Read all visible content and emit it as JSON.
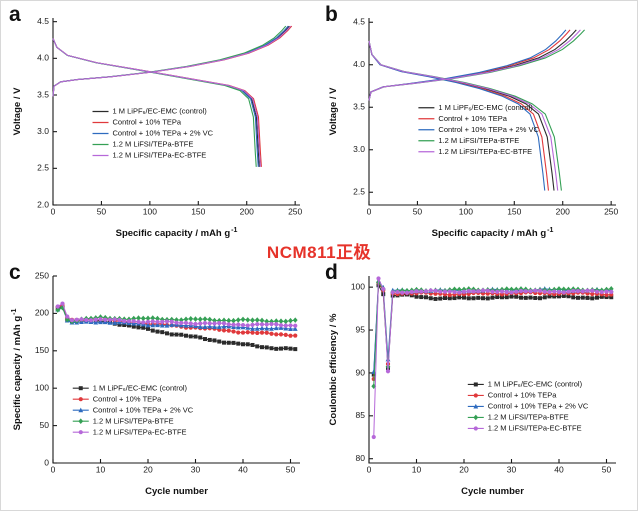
{
  "figure": {
    "center_label": "NCM811正极",
    "center_label_color": "#e6332a",
    "background": "#ffffff"
  },
  "chart_data": [
    {
      "panel": "a",
      "type": "line",
      "xlabel": "Specific capacity / mAh g",
      "xlabel_sup": "-1",
      "ylabel": "Voltage / V",
      "ylabel_sup": "",
      "xlim": [
        0,
        255
      ],
      "xticks": [
        0,
        50,
        100,
        150,
        200,
        250
      ],
      "xtick_labels": [
        "0",
        "50",
        "100",
        "150",
        "200",
        "250"
      ],
      "ylim": [
        2.0,
        4.55
      ],
      "yticks": [
        2.0,
        2.5,
        3.0,
        3.5,
        4.0,
        4.5
      ],
      "ytick_labels": [
        "2.0",
        "2.5",
        "3.0",
        "3.5",
        "4.0",
        "4.5"
      ],
      "markers": false,
      "jitter": 0,
      "legend": {
        "x": 0.16,
        "y": 0.5
      },
      "paths_template": {
        "charge": [
          [
            0,
            3.48
          ],
          [
            1,
            3.62
          ],
          [
            8,
            3.68
          ],
          [
            25,
            3.71
          ],
          [
            60,
            3.75
          ],
          [
            100,
            3.81
          ],
          [
            140,
            3.89
          ],
          [
            175,
            3.98
          ],
          [
            200,
            4.07
          ],
          [
            220,
            4.18
          ],
          [
            232,
            4.28
          ],
          [
            240,
            4.38
          ],
          [
            244,
            4.44
          ]
        ],
        "discharge": [
          [
            0,
            4.27
          ],
          [
            4,
            4.15
          ],
          [
            15,
            4.04
          ],
          [
            45,
            3.94
          ],
          [
            85,
            3.85
          ],
          [
            120,
            3.77
          ],
          [
            150,
            3.7
          ],
          [
            180,
            3.63
          ],
          [
            196,
            3.56
          ],
          [
            205,
            3.45
          ],
          [
            210,
            3.2
          ],
          [
            212,
            2.72
          ],
          [
            213,
            2.52
          ]
        ]
      },
      "series": [
        {
          "name": "1 M LiPF₆/EC-EMC (control)",
          "color": "#2b2b2b",
          "xscale": 1.0,
          "marker": "square"
        },
        {
          "name": "Control + 10% TEPa",
          "color": "#e0393c",
          "xscale": 1.01,
          "marker": "circle"
        },
        {
          "name": "Control + 10% TEPa + 2% VC",
          "color": "#2e6bbf",
          "xscale": 0.995,
          "marker": "triangle"
        },
        {
          "name": "1.2 M LiFSI/TEPa-BTFE",
          "color": "#35a055",
          "xscale": 0.985,
          "marker": "diamond"
        },
        {
          "name": "1.2 M LiFSI/TEPa-EC-BTFE",
          "color": "#b668d9",
          "xscale": 1.005,
          "marker": "circle"
        }
      ]
    },
    {
      "panel": "b",
      "type": "line",
      "xlabel": "Specific capacity / mAh g",
      "xlabel_sup": "-1",
      "ylabel": "Voltage / V",
      "ylabel_sup": "",
      "xlim": [
        0,
        255
      ],
      "xticks": [
        0,
        50,
        100,
        150,
        200,
        250
      ],
      "xtick_labels": [
        "0",
        "50",
        "100",
        "150",
        "200",
        "250"
      ],
      "ylim": [
        2.35,
        4.55
      ],
      "yticks": [
        2.5,
        3.0,
        3.5,
        4.0,
        4.5
      ],
      "ytick_labels": [
        "2.5",
        "3.0",
        "3.5",
        "4.0",
        "4.5"
      ],
      "markers": false,
      "jitter": 0,
      "legend": {
        "x": 0.2,
        "y": 0.48
      },
      "paths_template": {
        "charge": [
          [
            0,
            3.58
          ],
          [
            2,
            3.68
          ],
          [
            15,
            3.74
          ],
          [
            45,
            3.78
          ],
          [
            85,
            3.84
          ],
          [
            120,
            3.91
          ],
          [
            150,
            3.99
          ],
          [
            175,
            4.08
          ],
          [
            192,
            4.18
          ],
          [
            203,
            4.28
          ],
          [
            210,
            4.36
          ],
          [
            214,
            4.41
          ]
        ],
        "discharge": [
          [
            0,
            4.28
          ],
          [
            3,
            4.12
          ],
          [
            12,
            4.0
          ],
          [
            35,
            3.92
          ],
          [
            65,
            3.86
          ],
          [
            95,
            3.79
          ],
          [
            120,
            3.72
          ],
          [
            145,
            3.63
          ],
          [
            162,
            3.54
          ],
          [
            175,
            3.42
          ],
          [
            184,
            3.15
          ],
          [
            189,
            2.72
          ],
          [
            191,
            2.52
          ]
        ]
      },
      "series": [
        {
          "name": "1 M LiPF₆/EC-EMC (control)",
          "color": "#2b2b2b",
          "xscale": 1.0,
          "marker": "square"
        },
        {
          "name": "Control + 10% TEPa",
          "color": "#e0393c",
          "xscale": 0.97,
          "marker": "circle"
        },
        {
          "name": "Control + 10% TEPa + 2% VC",
          "color": "#2e6bbf",
          "xscale": 0.95,
          "marker": "triangle"
        },
        {
          "name": "1.2 M LiFSI/TEPa-BTFE",
          "color": "#35a055",
          "xscale": 1.04,
          "marker": "diamond"
        },
        {
          "name": "1.2 M LiFSI/TEPa-EC-BTFE",
          "color": "#b668d9",
          "xscale": 1.02,
          "marker": "circle"
        }
      ]
    },
    {
      "panel": "c",
      "type": "line",
      "xlabel": "Cycle number",
      "xlabel_sup": "",
      "ylabel": "Specific capacity / mAh g",
      "ylabel_sup": "-1",
      "xlim": [
        0,
        52
      ],
      "xticks": [
        0,
        10,
        20,
        30,
        40,
        50
      ],
      "xtick_labels": [
        "0",
        "10",
        "20",
        "30",
        "40",
        "50"
      ],
      "ylim": [
        0,
        250
      ],
      "yticks": [
        0,
        50,
        100,
        150,
        200,
        250
      ],
      "ytick_labels": [
        "0",
        "50",
        "100",
        "150",
        "200",
        "250"
      ],
      "markers": true,
      "cycles": 51,
      "jitter": 1.2,
      "legend": {
        "x": 0.08,
        "y": 0.6
      },
      "series": [
        {
          "name": "1 M LiPF₆/EC-EMC (control)",
          "color": "#2b2b2b",
          "marker": "square",
          "points": [
            [
              1,
              207
            ],
            [
              2,
              210
            ],
            [
              3,
              193
            ],
            [
              4,
              190
            ],
            [
              6,
              191
            ],
            [
              10,
              190
            ],
            [
              14,
              186
            ],
            [
              18,
              181
            ],
            [
              22,
              176
            ],
            [
              26,
              172
            ],
            [
              30,
              168
            ],
            [
              34,
              164
            ],
            [
              38,
              160
            ],
            [
              42,
              157
            ],
            [
              46,
              154
            ],
            [
              51,
              152
            ]
          ]
        },
        {
          "name": "Control + 10% TEPa",
          "color": "#e0393c",
          "marker": "circle",
          "points": [
            [
              1,
              208
            ],
            [
              2,
              211
            ],
            [
              3,
              194
            ],
            [
              4,
              191
            ],
            [
              6,
              192
            ],
            [
              10,
              192
            ],
            [
              15,
              189
            ],
            [
              20,
              186
            ],
            [
              25,
              184
            ],
            [
              30,
              181
            ],
            [
              35,
              178
            ],
            [
              40,
              175
            ],
            [
              45,
              173
            ],
            [
              51,
              171
            ]
          ]
        },
        {
          "name": "Control + 10% TEPa + 2% VC",
          "color": "#2e6bbf",
          "marker": "triangle",
          "points": [
            [
              1,
              206
            ],
            [
              2,
              209
            ],
            [
              3,
              190
            ],
            [
              4,
              187
            ],
            [
              6,
              188
            ],
            [
              10,
              189
            ],
            [
              15,
              187
            ],
            [
              20,
              185
            ],
            [
              25,
              184
            ],
            [
              30,
              183
            ],
            [
              35,
              182
            ],
            [
              40,
              181
            ],
            [
              45,
              180
            ],
            [
              51,
              179
            ]
          ]
        },
        {
          "name": "1.2 M LiFSI/TEPa-BTFE",
          "color": "#35a055",
          "marker": "diamond",
          "points": [
            [
              1,
              205
            ],
            [
              2,
              208
            ],
            [
              3,
              192
            ],
            [
              4,
              190
            ],
            [
              6,
              192
            ],
            [
              10,
              194
            ],
            [
              15,
              193
            ],
            [
              20,
              193
            ],
            [
              25,
              192
            ],
            [
              30,
              192
            ],
            [
              35,
              191
            ],
            [
              40,
              191
            ],
            [
              45,
              190
            ],
            [
              51,
              190
            ]
          ]
        },
        {
          "name": "1.2 M LiFSI/TEPa-EC-BTFE",
          "color": "#b668d9",
          "marker": "circle",
          "points": [
            [
              1,
              209
            ],
            [
              2,
              212
            ],
            [
              3,
              195
            ],
            [
              4,
              191
            ],
            [
              6,
              192
            ],
            [
              10,
              192
            ],
            [
              15,
              190
            ],
            [
              20,
              189
            ],
            [
              25,
              188
            ],
            [
              30,
              187
            ],
            [
              35,
              186
            ],
            [
              40,
              185
            ],
            [
              45,
              185
            ],
            [
              51,
              184
            ]
          ]
        }
      ]
    },
    {
      "panel": "d",
      "type": "line",
      "xlabel": "Cycle number",
      "xlabel_sup": "",
      "ylabel": "Coulombic efficiency / %",
      "ylabel_sup": "",
      "xlim": [
        0,
        52
      ],
      "xticks": [
        0,
        10,
        20,
        30,
        40,
        50
      ],
      "xtick_labels": [
        "0",
        "10",
        "20",
        "30",
        "40",
        "50"
      ],
      "ylim": [
        79.5,
        101.3
      ],
      "yticks": [
        80,
        85,
        90,
        95,
        100
      ],
      "ytick_labels": [
        "80",
        "85",
        "90",
        "95",
        "100"
      ],
      "markers": true,
      "cycles": 51,
      "jitter": 0.12,
      "legend": {
        "x": 0.4,
        "y": 0.58
      },
      "series": [
        {
          "name": "1 M LiPF₆/EC-EMC (control)",
          "color": "#2b2b2b",
          "marker": "square",
          "points": [
            [
              1,
              89.8
            ],
            [
              2,
              100.3
            ],
            [
              3,
              99.3
            ],
            [
              4,
              90.6
            ],
            [
              5,
              99.0
            ],
            [
              7,
              99.1
            ],
            [
              10,
              98.9
            ],
            [
              15,
              98.7
            ],
            [
              20,
              98.7
            ],
            [
              25,
              98.8
            ],
            [
              30,
              98.8
            ],
            [
              35,
              98.8
            ],
            [
              40,
              98.9
            ],
            [
              45,
              98.8
            ],
            [
              51,
              98.8
            ]
          ]
        },
        {
          "name": "Control + 10% TEPa",
          "color": "#e0393c",
          "marker": "circle",
          "points": [
            [
              1,
              89.2
            ],
            [
              2,
              100.5
            ],
            [
              3,
              99.6
            ],
            [
              4,
              91.0
            ],
            [
              5,
              99.3
            ],
            [
              10,
              99.3
            ],
            [
              15,
              99.2
            ],
            [
              20,
              99.2
            ],
            [
              30,
              99.3
            ],
            [
              40,
              99.3
            ],
            [
              51,
              99.2
            ]
          ]
        },
        {
          "name": "Control + 10% TEPa + 2% VC",
          "color": "#2e6bbf",
          "marker": "triangle",
          "points": [
            [
              1,
              90.2
            ],
            [
              2,
              100.8
            ],
            [
              3,
              99.9
            ],
            [
              4,
              91.5
            ],
            [
              5,
              99.6
            ],
            [
              10,
              99.6
            ],
            [
              20,
              99.6
            ],
            [
              30,
              99.7
            ],
            [
              40,
              99.7
            ],
            [
              51,
              99.6
            ]
          ]
        },
        {
          "name": "1.2 M LiFSI/TEPa-BTFE",
          "color": "#35a055",
          "marker": "diamond",
          "points": [
            [
              1,
              88.5
            ],
            [
              2,
              100.6
            ],
            [
              3,
              99.8
            ],
            [
              4,
              90.8
            ],
            [
              5,
              99.5
            ],
            [
              10,
              99.6
            ],
            [
              20,
              99.7
            ],
            [
              30,
              99.7
            ],
            [
              40,
              99.7
            ],
            [
              51,
              99.7
            ]
          ]
        },
        {
          "name": "1.2 M LiFSI/TEPa-EC-BTFE",
          "color": "#b668d9",
          "marker": "circle",
          "points": [
            [
              1,
              82.5
            ],
            [
              2,
              100.9
            ],
            [
              3,
              99.7
            ],
            [
              4,
              90.2
            ],
            [
              5,
              99.4
            ],
            [
              10,
              99.5
            ],
            [
              20,
              99.5
            ],
            [
              30,
              99.5
            ],
            [
              40,
              99.5
            ],
            [
              51,
              99.5
            ]
          ]
        }
      ]
    }
  ]
}
